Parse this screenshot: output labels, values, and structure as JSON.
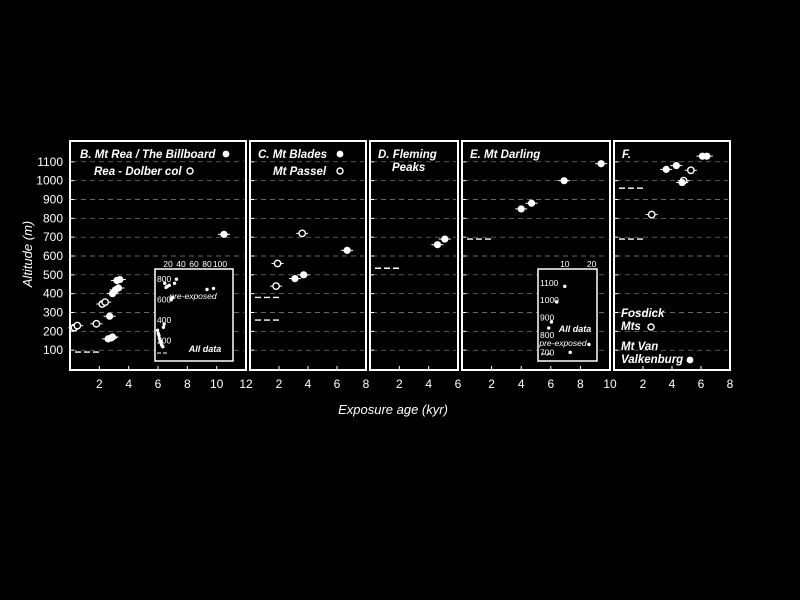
{
  "figure": {
    "ylabel": "Altitude (m)",
    "xlabel": "Exposure age (kyr)",
    "y_ticks": [
      100,
      200,
      300,
      400,
      500,
      600,
      700,
      800,
      900,
      1000,
      1100
    ],
    "ylim": [
      0,
      1200
    ],
    "colors": {
      "background": "#000000",
      "foreground": "#ffffff",
      "grid": "#888888"
    }
  },
  "chart_data": [
    {
      "type": "scatter",
      "panel": "B",
      "legend": [
        {
          "label": "B. Mt Rea / The Billboard",
          "marker": "filled-circle"
        },
        {
          "label": "Rea - Dolber col",
          "marker": "open-circle"
        }
      ],
      "xlim": [
        0,
        12
      ],
      "x_ticks": [
        2,
        4,
        6,
        8,
        10,
        12
      ],
      "series": [
        {
          "name": "Mt Rea / The Billboard",
          "marker": "filled",
          "points": [
            [
              2.6,
              160
            ],
            [
              2.8,
              165
            ],
            [
              2.9,
              170
            ],
            [
              2.7,
              280
            ],
            [
              2.9,
              400
            ],
            [
              3.1,
              420
            ],
            [
              3.2,
              470
            ],
            [
              3.4,
              475
            ],
            [
              3.3,
              430
            ],
            [
              10.5,
              715
            ]
          ]
        },
        {
          "name": "Rea - Dolber col",
          "marker": "open",
          "points": [
            [
              0.3,
              220
            ],
            [
              0.5,
              230
            ],
            [
              1.8,
              240
            ],
            [
              2.2,
              345
            ],
            [
              2.4,
              355
            ]
          ]
        }
      ],
      "pre_exposed_markers": [
        90
      ],
      "inset": {
        "x_ticks": [
          20,
          40,
          60,
          80,
          100
        ],
        "y_ticks": [
          200,
          400,
          600,
          800
        ],
        "annotations": [
          "pre-exposed",
          "All data"
        ],
        "points": [
          [
            4,
            300
          ],
          [
            5,
            270
          ],
          [
            6,
            250
          ],
          [
            7,
            220
          ],
          [
            8,
            200
          ],
          [
            9,
            180
          ],
          [
            10,
            160
          ],
          [
            11,
            150
          ],
          [
            12,
            140
          ],
          [
            13,
            330
          ],
          [
            14,
            360
          ],
          [
            15,
            760
          ],
          [
            17,
            720
          ],
          [
            19,
            730
          ],
          [
            22,
            740
          ],
          [
            25,
            600
          ],
          [
            27,
            620
          ],
          [
            30,
            760
          ],
          [
            33,
            800
          ],
          [
            80,
            700
          ],
          [
            90,
            710
          ]
        ]
      }
    },
    {
      "type": "scatter",
      "panel": "C",
      "legend": [
        {
          "label": "C. Mt Blades",
          "marker": "filled-circle"
        },
        {
          "label": "Mt Passel",
          "marker": "open-circle"
        }
      ],
      "xlim": [
        0,
        8
      ],
      "x_ticks": [
        2,
        4,
        6,
        8
      ],
      "series": [
        {
          "name": "Mt Blades",
          "marker": "filled",
          "points": [
            [
              3.1,
              480
            ],
            [
              3.7,
              500
            ],
            [
              6.7,
              630
            ]
          ]
        },
        {
          "name": "Mt Passel",
          "marker": "open",
          "points": [
            [
              1.8,
              440
            ],
            [
              1.9,
              560
            ],
            [
              3.6,
              720
            ]
          ]
        }
      ],
      "pre_exposed_markers": [
        380,
        260
      ]
    },
    {
      "type": "scatter",
      "panel": "D",
      "legend": [
        {
          "label": "D. Fleming Peaks",
          "marker": "filled-circle"
        }
      ],
      "xlim": [
        0,
        6
      ],
      "x_ticks": [
        2,
        4,
        6
      ],
      "series": [
        {
          "name": "Fleming Peaks",
          "marker": "filled",
          "points": [
            [
              4.6,
              660
            ],
            [
              5.1,
              690
            ]
          ]
        }
      ],
      "pre_exposed_markers": [
        535
      ]
    },
    {
      "type": "scatter",
      "panel": "E",
      "legend": [
        {
          "label": "E. Mt Darling",
          "marker": "filled-circle"
        }
      ],
      "xlim": [
        0,
        10
      ],
      "x_ticks": [
        2,
        4,
        6,
        8,
        10
      ],
      "series": [
        {
          "name": "Mt Darling",
          "marker": "filled",
          "points": [
            [
              4.0,
              850
            ],
            [
              4.7,
              880
            ],
            [
              6.9,
              1000
            ],
            [
              9.4,
              1090
            ]
          ]
        }
      ],
      "pre_exposed_markers": [
        690
      ],
      "inset": {
        "x_ticks": [
          10,
          20
        ],
        "y_ticks": [
          700,
          800,
          900,
          1000,
          1100
        ],
        "annotations": [
          "All data",
          "pre-exposed"
        ],
        "points": [
          [
            4,
            840
          ],
          [
            5,
            875
          ],
          [
            7,
            990
          ],
          [
            10,
            1080
          ],
          [
            12,
            700
          ],
          [
            19,
            745
          ]
        ]
      }
    },
    {
      "type": "scatter",
      "panel": "F",
      "legend": [
        {
          "label": "F.",
          "marker": ""
        },
        {
          "label": "Fosdick Mts",
          "marker": "open-circle"
        },
        {
          "label": "Mt Van Valkenburg",
          "marker": "filled-circle"
        }
      ],
      "xlim": [
        0,
        8
      ],
      "x_ticks": [
        2,
        4,
        6,
        8
      ],
      "series": [
        {
          "name": "Fosdick Mts",
          "marker": "open",
          "points": [
            [
              2.6,
              820
            ],
            [
              4.8,
              1000
            ],
            [
              5.3,
              1055
            ]
          ]
        },
        {
          "name": "Mt Van Valkenburg",
          "marker": "filled",
          "points": [
            [
              3.6,
              1060
            ],
            [
              4.3,
              1080
            ],
            [
              4.7,
              990
            ],
            [
              6.1,
              1130
            ],
            [
              6.4,
              1130
            ]
          ]
        }
      ],
      "pre_exposed_markers": [
        960,
        690
      ]
    }
  ]
}
